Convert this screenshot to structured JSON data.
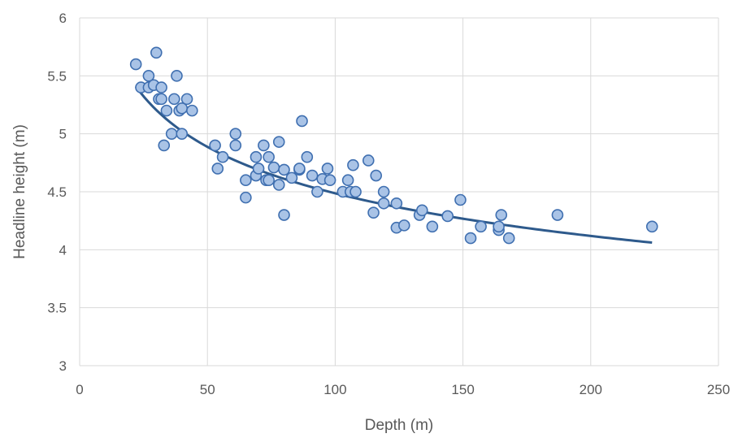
{
  "chart_data": {
    "type": "scatter",
    "xlabel": "Depth (m)",
    "ylabel": "Headline height (m)",
    "xlim": [
      0,
      250
    ],
    "ylim": [
      3,
      6
    ],
    "xticks": [
      0,
      50,
      100,
      150,
      200,
      250
    ],
    "yticks": [
      3,
      3.5,
      4,
      4.5,
      5,
      5.5,
      6
    ],
    "grid": true,
    "colors": {
      "marker_fill": "#a9c3e6",
      "marker_edge": "#3f6fb0",
      "trendline": "#2e5a8c"
    },
    "points": [
      [
        22,
        5.6
      ],
      [
        24,
        5.4
      ],
      [
        27,
        5.5
      ],
      [
        27,
        5.4
      ],
      [
        29,
        5.42
      ],
      [
        30,
        5.7
      ],
      [
        31,
        5.3
      ],
      [
        32,
        5.4
      ],
      [
        32,
        5.3
      ],
      [
        33,
        4.9
      ],
      [
        34,
        5.2
      ],
      [
        36,
        5.0
      ],
      [
        37,
        5.3
      ],
      [
        38,
        5.5
      ],
      [
        39,
        5.2
      ],
      [
        40,
        5.0
      ],
      [
        40,
        5.22
      ],
      [
        42,
        5.3
      ],
      [
        44,
        5.2
      ],
      [
        53,
        4.9
      ],
      [
        54,
        4.7
      ],
      [
        56,
        4.8
      ],
      [
        61,
        5.0
      ],
      [
        61,
        4.9
      ],
      [
        65,
        4.45
      ],
      [
        65,
        4.6
      ],
      [
        69,
        4.8
      ],
      [
        69,
        4.64
      ],
      [
        70,
        4.7
      ],
      [
        72,
        4.9
      ],
      [
        73,
        4.6
      ],
      [
        74,
        4.6
      ],
      [
        74,
        4.8
      ],
      [
        76,
        4.71
      ],
      [
        78,
        4.93
      ],
      [
        78,
        4.56
      ],
      [
        80,
        4.69
      ],
      [
        80,
        4.3
      ],
      [
        83,
        4.62
      ],
      [
        86,
        4.69
      ],
      [
        86,
        4.7
      ],
      [
        87,
        5.11
      ],
      [
        89,
        4.8
      ],
      [
        91,
        4.64
      ],
      [
        93,
        4.5
      ],
      [
        95,
        4.61
      ],
      [
        97,
        4.7
      ],
      [
        98,
        4.6
      ],
      [
        103,
        4.5
      ],
      [
        105,
        4.6
      ],
      [
        106,
        4.5
      ],
      [
        107,
        4.73
      ],
      [
        108,
        4.5
      ],
      [
        113,
        4.77
      ],
      [
        115,
        4.32
      ],
      [
        116,
        4.64
      ],
      [
        119,
        4.5
      ],
      [
        119,
        4.4
      ],
      [
        124,
        4.4
      ],
      [
        124,
        4.19
      ],
      [
        127,
        4.21
      ],
      [
        133,
        4.3
      ],
      [
        134,
        4.34
      ],
      [
        138,
        4.2
      ],
      [
        144,
        4.29
      ],
      [
        149,
        4.43
      ],
      [
        153,
        4.1
      ],
      [
        157,
        4.2
      ],
      [
        164,
        4.17
      ],
      [
        164,
        4.2
      ],
      [
        165,
        4.3
      ],
      [
        168,
        4.1
      ],
      [
        187,
        4.3
      ],
      [
        224,
        4.2
      ]
    ],
    "trendline": {
      "type": "power",
      "x": [
        22,
        224
      ],
      "coef_a": 7.92,
      "exponent": -0.1234
    }
  }
}
